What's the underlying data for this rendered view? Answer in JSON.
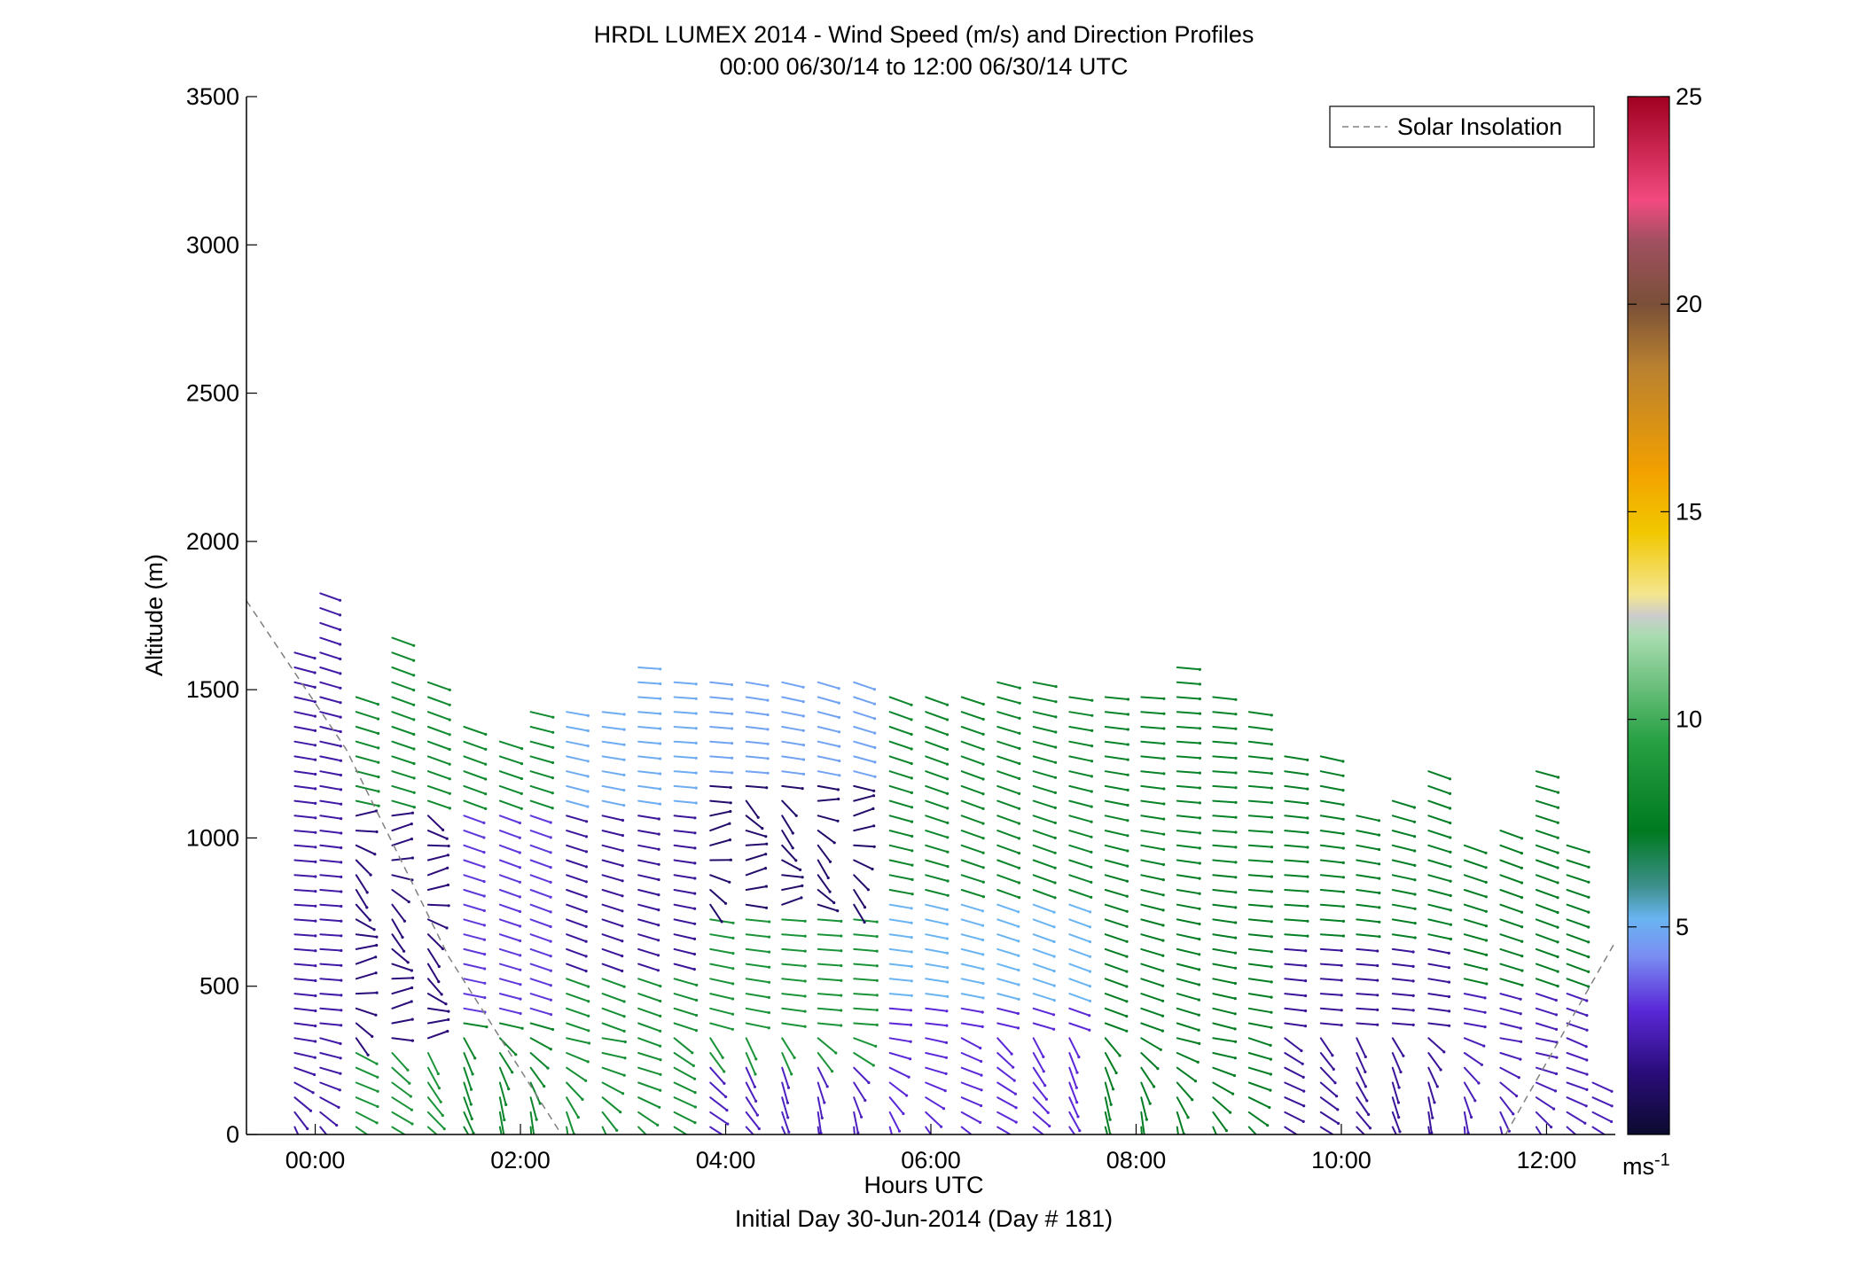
{
  "chart_data": {
    "type": "wind-barb-profile",
    "title": "HRDL LUMEX 2014 - Wind Speed (m/s) and Direction Profiles",
    "subtitle": "00:00 06/30/14 to 12:00 06/30/14  UTC",
    "xlabel": "Hours UTC",
    "xlabel2": "Initial Day 30-Jun-2014 (Day # 181)",
    "ylabel": "Altitude (m)",
    "xlim_hours": [
      -0.67,
      12.67
    ],
    "ylim": [
      0,
      3500
    ],
    "x_ticks": [
      {
        "hour": 0,
        "label": "00:00"
      },
      {
        "hour": 2,
        "label": "02:00"
      },
      {
        "hour": 4,
        "label": "04:00"
      },
      {
        "hour": 6,
        "label": "06:00"
      },
      {
        "hour": 8,
        "label": "08:00"
      },
      {
        "hour": 10,
        "label": "10:00"
      },
      {
        "hour": 12,
        "label": "12:00"
      }
    ],
    "y_ticks": [
      0,
      500,
      1000,
      1500,
      2000,
      2500,
      3000,
      3500
    ],
    "grid": false,
    "legend": {
      "position": "top-right",
      "entries": [
        "Solar Insolation"
      ]
    },
    "colorbar": {
      "range": [
        0,
        25
      ],
      "ticks": [
        5,
        10,
        15,
        20,
        25
      ],
      "unit": "ms",
      "unit_exponent": "-1",
      "stops": [
        {
          "v": 0,
          "c": "#0b0b2e"
        },
        {
          "v": 1.5,
          "c": "#2a0c7a"
        },
        {
          "v": 3,
          "c": "#5a28d8"
        },
        {
          "v": 4.3,
          "c": "#7a8ef2"
        },
        {
          "v": 5.2,
          "c": "#6ab4f2"
        },
        {
          "v": 6,
          "c": "#3c8f8a"
        },
        {
          "v": 7.3,
          "c": "#007a20"
        },
        {
          "v": 9.5,
          "c": "#28a044"
        },
        {
          "v": 12,
          "c": "#a8dcb0"
        },
        {
          "v": 12.5,
          "c": "#cccccc"
        },
        {
          "v": 13,
          "c": "#f4e690"
        },
        {
          "v": 14.5,
          "c": "#f2c800"
        },
        {
          "v": 16,
          "c": "#f2a000"
        },
        {
          "v": 18.5,
          "c": "#b88030"
        },
        {
          "v": 20,
          "c": "#7a5038"
        },
        {
          "v": 21.5,
          "c": "#a05060"
        },
        {
          "v": 22.5,
          "c": "#f24a80"
        },
        {
          "v": 25,
          "c": "#a00020"
        }
      ]
    },
    "solar_insolation": {
      "style": "dashed",
      "color": "#808080",
      "segments": [
        [
          [
            -0.67,
            1800
          ],
          [
            0.3,
            1300
          ],
          [
            1.3,
            600
          ],
          [
            2.4,
            0
          ]
        ],
        [
          [
            11.6,
            0
          ],
          [
            12.67,
            650
          ]
        ]
      ]
    },
    "profile_hours": [
      -0.2,
      0.05,
      0.4,
      0.75,
      1.1,
      1.45,
      1.8,
      2.1,
      2.45,
      2.8,
      3.15,
      3.5,
      3.85,
      4.2,
      4.55,
      4.9,
      5.25,
      5.6,
      5.95,
      6.3,
      6.65,
      7.0,
      7.35,
      7.7,
      8.05,
      8.4,
      8.75,
      9.1,
      9.45,
      9.8,
      10.15,
      10.5,
      10.85,
      11.2,
      11.55,
      11.9,
      12.2
    ],
    "profile_tops_m": [
      1650,
      1840,
      1520,
      1700,
      1540,
      1380,
      1350,
      1450,
      1430,
      1450,
      1620,
      1560,
      1560,
      1560,
      1560,
      1540,
      1540,
      1500,
      1500,
      1500,
      1540,
      1550,
      1500,
      1500,
      1500,
      1580,
      1480,
      1450,
      1300,
      1300,
      1100,
      1150,
      1250,
      1000,
      1050,
      1250,
      1000
    ],
    "profile_hours_short": [
      12.45
    ],
    "profile_tops_short_m": [
      200
    ],
    "height_step_m": 50,
    "barb_length_h": 0.23,
    "speed_field": {
      "description": "Piecewise wind speed (m/s) regions by time (hours) and altitude (m), as read from colors",
      "regions": [
        {
          "t": [
            -0.3,
            0.3
          ],
          "z": [
            0,
            1900
          ],
          "speed": 2.2
        },
        {
          "t": [
            0.3,
            1.4
          ],
          "z": [
            0,
            300
          ],
          "speed": 8.8
        },
        {
          "t": [
            0.3,
            1.4
          ],
          "z": [
            300,
            1100
          ],
          "speed": 1.5
        },
        {
          "t": [
            0.3,
            2.2
          ],
          "z": [
            1100,
            1900
          ],
          "speed": 8.2
        },
        {
          "t": [
            1.4,
            2.2
          ],
          "z": [
            0,
            400
          ],
          "speed": 8.0
        },
        {
          "t": [
            1.4,
            2.2
          ],
          "z": [
            400,
            1100
          ],
          "speed": 3.2
        },
        {
          "t": [
            2.2,
            3.6
          ],
          "z": [
            0,
            550
          ],
          "speed": 8.5
        },
        {
          "t": [
            2.2,
            3.6
          ],
          "z": [
            550,
            1100
          ],
          "speed": 2.0
        },
        {
          "t": [
            2.2,
            3.6
          ],
          "z": [
            1100,
            1700
          ],
          "speed": 5.0
        },
        {
          "t": [
            3.6,
            5.4
          ],
          "z": [
            0,
            250
          ],
          "speed": 2.6
        },
        {
          "t": [
            3.6,
            5.4
          ],
          "z": [
            250,
            750
          ],
          "speed": 8.8
        },
        {
          "t": [
            3.6,
            5.4
          ],
          "z": [
            750,
            1200
          ],
          "speed": 1.2
        },
        {
          "t": [
            3.6,
            5.4
          ],
          "z": [
            1200,
            1700
          ],
          "speed": 4.8
        },
        {
          "t": [
            5.4,
            7.6
          ],
          "z": [
            0,
            450
          ],
          "speed": 3.0
        },
        {
          "t": [
            5.4,
            7.6
          ],
          "z": [
            450,
            800
          ],
          "speed": 5.2
        },
        {
          "t": [
            5.4,
            7.6
          ],
          "z": [
            800,
            1600
          ],
          "speed": 8.0
        },
        {
          "t": [
            7.6,
            9.3
          ],
          "z": [
            0,
            900
          ],
          "speed": 7.5
        },
        {
          "t": [
            7.6,
            9.3
          ],
          "z": [
            900,
            1600
          ],
          "speed": 7.8
        },
        {
          "t": [
            9.3,
            11.0
          ],
          "z": [
            0,
            650
          ],
          "speed": 2.0
        },
        {
          "t": [
            9.3,
            11.0
          ],
          "z": [
            650,
            1300
          ],
          "speed": 7.6
        },
        {
          "t": [
            11.0,
            12.7
          ],
          "z": [
            0,
            500
          ],
          "speed": 2.5
        },
        {
          "t": [
            11.0,
            12.7
          ],
          "z": [
            500,
            1300
          ],
          "speed": 7.5
        }
      ]
    }
  }
}
